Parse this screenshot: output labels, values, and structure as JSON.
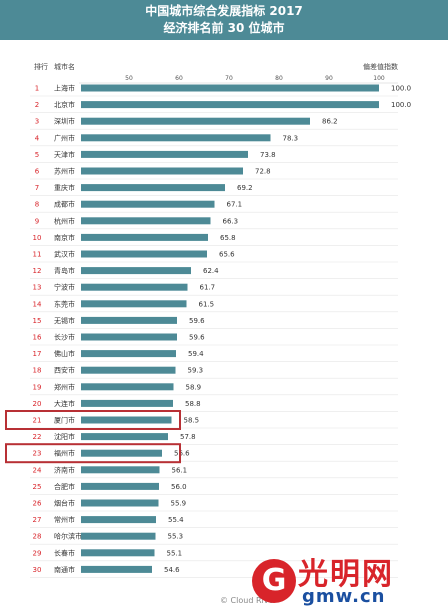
{
  "header": {
    "title_line1": "中国城市综合发展指标 2017",
    "title_line2": "经济排名前 30 位城市",
    "bg_color": "#4d8a96"
  },
  "columns": {
    "rank": "排行",
    "city": "城市名",
    "score": "偏差值指数"
  },
  "chart_data": {
    "type": "bar",
    "orientation": "horizontal",
    "xlim": [
      40,
      100
    ],
    "x_ticks": [
      50,
      60,
      70,
      80,
      90,
      100
    ],
    "bar_color": "#4d8a96",
    "highlight_color": "#b83035",
    "ranks": [
      1,
      2,
      3,
      4,
      5,
      6,
      7,
      8,
      9,
      10,
      11,
      12,
      13,
      14,
      15,
      16,
      17,
      18,
      19,
      20,
      21,
      22,
      23,
      24,
      25,
      26,
      27,
      28,
      29,
      30
    ],
    "categories": [
      "上海市",
      "北京市",
      "深圳市",
      "广州市",
      "天津市",
      "苏州市",
      "重庆市",
      "成都市",
      "杭州市",
      "南京市",
      "武汉市",
      "青岛市",
      "宁波市",
      "东莞市",
      "无锡市",
      "长沙市",
      "佛山市",
      "西安市",
      "郑州市",
      "大连市",
      "厦门市",
      "沈阳市",
      "福州市",
      "济南市",
      "合肥市",
      "烟台市",
      "常州市",
      "哈尔滨市",
      "长春市",
      "南通市"
    ],
    "values": [
      100.0,
      100.0,
      86.2,
      78.3,
      73.8,
      72.8,
      69.2,
      67.1,
      66.3,
      65.8,
      65.6,
      62.4,
      61.7,
      61.5,
      59.6,
      59.6,
      59.4,
      59.3,
      58.9,
      58.8,
      58.5,
      57.8,
      56.6,
      56.1,
      56.0,
      55.9,
      55.4,
      55.3,
      55.1,
      54.6
    ],
    "value_labels": [
      "100.0",
      "100.0",
      "86.2",
      "78.3",
      "73.8",
      "72.8",
      "69.2",
      "67.1",
      "66.3",
      "65.8",
      "65.6",
      "62.4",
      "61.7",
      "61.5",
      "59.6",
      "59.6",
      "59.4",
      "59.3",
      "58.9",
      "58.8",
      "58.5",
      "57.8",
      "56.6",
      "56.1",
      "56.0",
      "55.9",
      "55.4",
      "55.3",
      "55.1",
      "54.6"
    ],
    "highlighted": [
      "厦门市",
      "福州市"
    ]
  },
  "watermark": {
    "logo_cn": "光明网",
    "logo_en": "gmw.cn",
    "logo_letter": "G",
    "credit": "© Cloud Rive"
  }
}
